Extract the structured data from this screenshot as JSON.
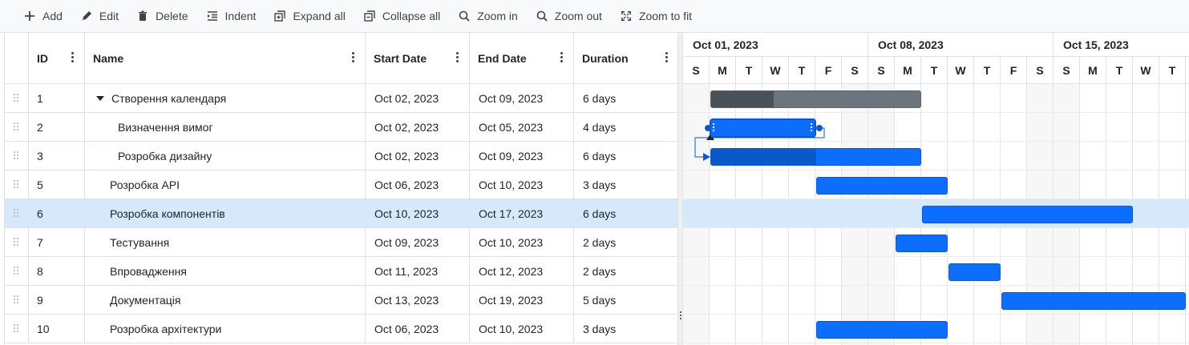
{
  "toolbar": {
    "buttons": [
      {
        "label": "Add",
        "icon": "plus-icon"
      },
      {
        "label": "Edit",
        "icon": "pencil-icon"
      },
      {
        "label": "Delete",
        "icon": "trash-icon"
      },
      {
        "label": "Indent",
        "icon": "indent-icon"
      },
      {
        "label": "Expand all",
        "icon": "expand-all-icon"
      },
      {
        "label": "Collapse all",
        "icon": "collapse-all-icon"
      },
      {
        "label": "Zoom in",
        "icon": "zoom-in-icon"
      },
      {
        "label": "Zoom out",
        "icon": "zoom-out-icon"
      },
      {
        "label": "Zoom to fit",
        "icon": "zoom-fit-icon"
      }
    ]
  },
  "grid": {
    "columns": {
      "id": "ID",
      "name": "Name",
      "start": "Start Date",
      "end": "End Date",
      "duration": "Duration"
    },
    "rows": [
      {
        "id": "1",
        "name": "Створення календаря",
        "start": "Oct 02, 2023",
        "end": "Oct 09, 2023",
        "duration": "6 days",
        "level": 0,
        "expanded": true
      },
      {
        "id": "2",
        "name": "Визначення вимог",
        "start": "Oct 02, 2023",
        "end": "Oct 05, 2023",
        "duration": "4 days",
        "level": 1
      },
      {
        "id": "3",
        "name": "Розробка дизайну",
        "start": "Oct 02, 2023",
        "end": "Oct 09, 2023",
        "duration": "6 days",
        "level": 1
      },
      {
        "id": "5",
        "name": "Розробка API",
        "start": "Oct 06, 2023",
        "end": "Oct 10, 2023",
        "duration": "3 days",
        "level": 0
      },
      {
        "id": "6",
        "name": "Розробка компонентів",
        "start": "Oct 10, 2023",
        "end": "Oct 17, 2023",
        "duration": "6 days",
        "level": 0,
        "selected": true
      },
      {
        "id": "7",
        "name": "Тестування",
        "start": "Oct 09, 2023",
        "end": "Oct 10, 2023",
        "duration": "2 days",
        "level": 0
      },
      {
        "id": "8",
        "name": "Впровадження",
        "start": "Oct 11, 2023",
        "end": "Oct 12, 2023",
        "duration": "2 days",
        "level": 0
      },
      {
        "id": "9",
        "name": "Документація",
        "start": "Oct 13, 2023",
        "end": "Oct 19, 2023",
        "duration": "5 days",
        "level": 0
      },
      {
        "id": "10",
        "name": "Розробка архітектури",
        "start": "Oct 06, 2023",
        "end": "Oct 10, 2023",
        "duration": "3 days",
        "level": 0
      }
    ]
  },
  "timeline": {
    "weeks": [
      "Oct 01, 2023",
      "Oct 08, 2023",
      "Oct 15, 2023"
    ],
    "days": [
      "S",
      "M",
      "T",
      "W",
      "T",
      "F",
      "S",
      "S",
      "M",
      "T",
      "W",
      "T",
      "F",
      "S",
      "S",
      "M",
      "T",
      "W",
      "T"
    ],
    "tasks": [
      {
        "start_day": 1,
        "span_days": 8,
        "progress": 0.3,
        "summary": true
      },
      {
        "start_day": 1,
        "span_days": 4,
        "progress": 0,
        "active": true
      },
      {
        "start_day": 1,
        "span_days": 8,
        "progress": 0.5
      },
      {
        "start_day": 5,
        "span_days": 5,
        "progress": 0
      },
      {
        "start_day": 9,
        "span_days": 8,
        "progress": 0
      },
      {
        "start_day": 8,
        "span_days": 2,
        "progress": 0
      },
      {
        "start_day": 10,
        "span_days": 2,
        "progress": 0
      },
      {
        "start_day": 12,
        "span_days": 7,
        "progress": 0
      },
      {
        "start_day": 5,
        "span_days": 5,
        "progress": 0
      }
    ]
  },
  "colors": {
    "accent": "#0d6efd",
    "accent_dark": "#0a58ca",
    "summary": "#6c757d",
    "selected_row": "#d6e9fb"
  }
}
